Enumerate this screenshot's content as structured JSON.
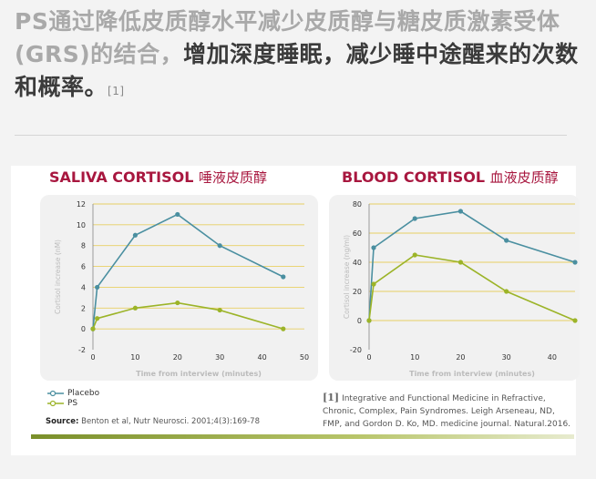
{
  "headline": {
    "part1": "PS通过降低皮质醇水平减少皮质醇与糖皮质激素受体(GRS)的结合，",
    "part2": "增加深度睡眠，减少睡中途醒来的次数和概率。",
    "ref_mark": "[1]"
  },
  "colors": {
    "placebo": "#4a8fa0",
    "ps": "#9cb428",
    "title": "#a8173f",
    "grid": "#e8cf63"
  },
  "chart_data": [
    {
      "type": "line",
      "title_en": "SALIVA CORTISOL",
      "title_cn": "唾液皮质醇",
      "xlabel": "Time from interview (minutes)",
      "ylabel": "Cortisol increase (nM)",
      "xlim": [
        0,
        50
      ],
      "ylim": [
        -2,
        12
      ],
      "xticks": [
        0,
        10,
        20,
        30,
        40,
        50
      ],
      "yticks": [
        -2,
        0,
        2,
        4,
        6,
        8,
        10,
        12
      ],
      "series": [
        {
          "name": "Placebo",
          "x": [
            0,
            1,
            10,
            20,
            30,
            45
          ],
          "y": [
            0,
            4,
            9,
            11,
            8,
            5
          ]
        },
        {
          "name": "PS",
          "x": [
            0,
            1,
            10,
            20,
            30,
            45
          ],
          "y": [
            0,
            1,
            2,
            2.5,
            1.8,
            0
          ]
        }
      ]
    },
    {
      "type": "line",
      "title_en": "BLOOD CORTISOL",
      "title_cn": "血液皮质醇",
      "xlabel": "Time from interview (minutes)",
      "ylabel": "Cortisol increase (ng/ml)",
      "xlim": [
        0,
        45
      ],
      "ylim": [
        -20,
        80
      ],
      "xticks": [
        0,
        10,
        20,
        30,
        40
      ],
      "yticks": [
        -20,
        0,
        20,
        40,
        60,
        80
      ],
      "series": [
        {
          "name": "Placebo",
          "x": [
            0,
            1,
            10,
            20,
            30,
            45
          ],
          "y": [
            0,
            50,
            70,
            75,
            55,
            40
          ]
        },
        {
          "name": "PS",
          "x": [
            0,
            1,
            10,
            20,
            30,
            45
          ],
          "y": [
            0,
            25,
            45,
            40,
            20,
            0
          ]
        }
      ]
    }
  ],
  "legend": [
    "Placebo",
    "PS"
  ],
  "source": {
    "label": "Source:",
    "text": "Benton et al, Nutr Neurosci. 2001;4(3):169-78"
  },
  "reference": {
    "mark": "[1]",
    "text": "Integrative and Functional Medicine in Refractive, Chronic, Complex, Pain Syndromes. Leigh Arseneau, ND, FMP, and Gordon D. Ko, MD. medicine journal.  Natural.2016."
  }
}
